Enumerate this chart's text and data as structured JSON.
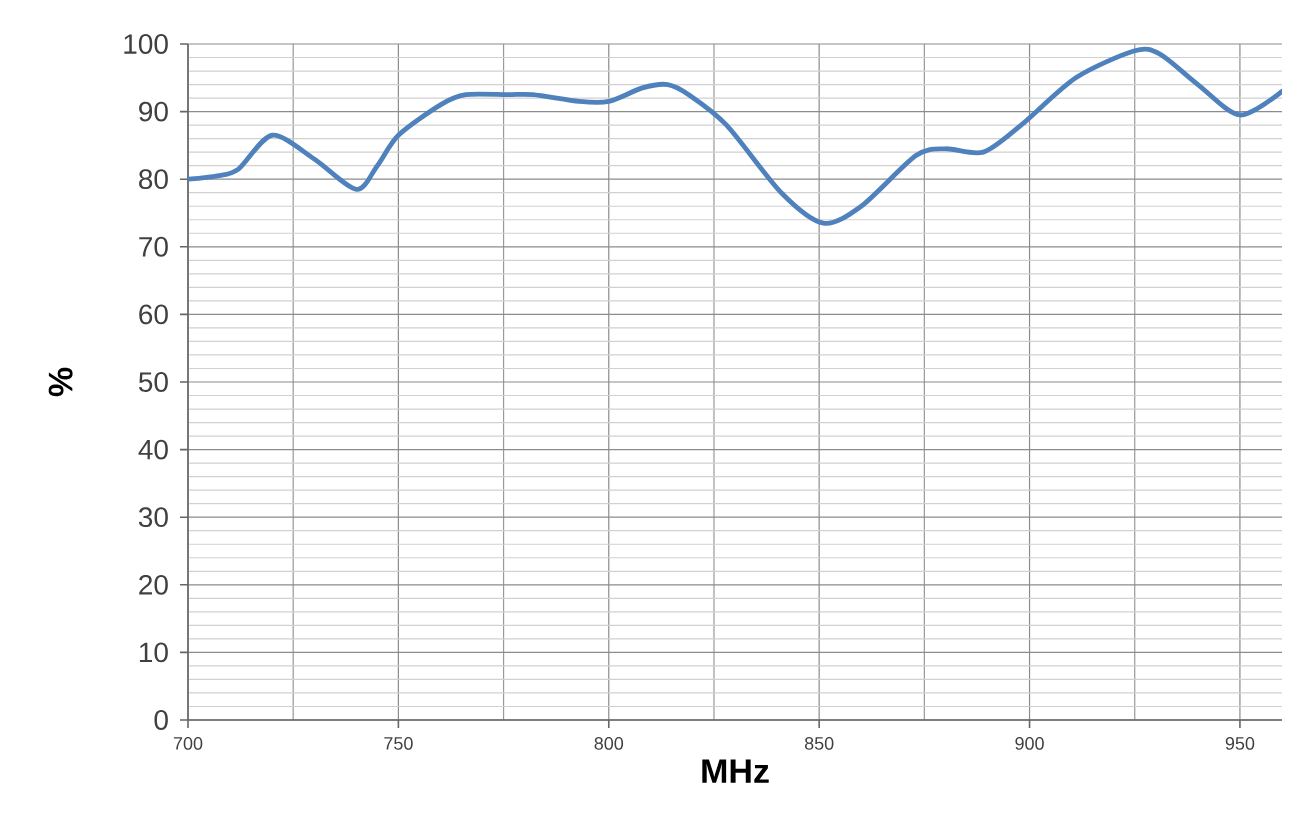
{
  "chart_data": {
    "type": "line",
    "xlabel": "MHz",
    "ylabel": "%",
    "x": [
      700,
      707,
      712,
      720,
      730,
      740,
      745,
      750,
      760,
      766,
      776,
      782,
      793,
      800,
      808,
      814,
      819,
      828,
      841,
      851,
      860,
      873,
      880,
      889,
      898,
      911,
      925,
      931,
      940,
      950,
      960
    ],
    "values": [
      80,
      80.5,
      81.5,
      86.5,
      83,
      78.5,
      82,
      86.5,
      91,
      92.5,
      92.5,
      92.5,
      91.5,
      91.5,
      93.5,
      94,
      92.5,
      88,
      78,
      73.5,
      76,
      83.5,
      84.5,
      84,
      88,
      95,
      99,
      98.5,
      94,
      89.5,
      93
    ],
    "color": "#4f81bd",
    "xlim": [
      700,
      960
    ],
    "ylim": [
      0,
      100
    ],
    "xticks": [
      700,
      750,
      800,
      850,
      900,
      950
    ],
    "yticks": [
      0,
      10,
      20,
      30,
      40,
      50,
      60,
      70,
      80,
      90,
      100
    ],
    "grid": true
  }
}
